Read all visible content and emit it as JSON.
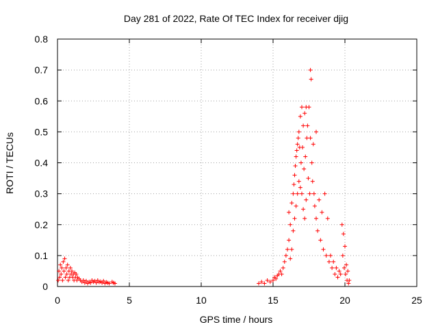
{
  "chart_data": {
    "type": "scatter",
    "title": "Day 281 of 2022, Rate Of TEC Index for receiver djig",
    "xlabel": "GPS time / hours",
    "ylabel": "ROTI / TECUs",
    "xlim": [
      0,
      25
    ],
    "ylim": [
      0,
      0.8
    ],
    "x_ticks": [
      0,
      5,
      10,
      15,
      20,
      25
    ],
    "y_ticks": [
      0,
      0.1,
      0.2,
      0.3,
      0.4,
      0.5,
      0.6,
      0.7,
      0.8
    ],
    "grid": "dotted",
    "marker": "+",
    "colors": {
      "points": "#ff0000",
      "grid": "#a0a0a0",
      "axes": "#000000"
    },
    "series": [
      {
        "points": [
          [
            0.05,
            0.02
          ],
          [
            0.1,
            0.05
          ],
          [
            0.15,
            0.03
          ],
          [
            0.2,
            0.07
          ],
          [
            0.25,
            0.04
          ],
          [
            0.3,
            0.06
          ],
          [
            0.35,
            0.02
          ],
          [
            0.4,
            0.08
          ],
          [
            0.45,
            0.05
          ],
          [
            0.5,
            0.09
          ],
          [
            0.55,
            0.03
          ],
          [
            0.6,
            0.06
          ],
          [
            0.65,
            0.04
          ],
          [
            0.7,
            0.07
          ],
          [
            0.75,
            0.02
          ],
          [
            0.8,
            0.05
          ],
          [
            0.85,
            0.03
          ],
          [
            0.9,
            0.06
          ],
          [
            0.95,
            0.04
          ],
          [
            1.0,
            0.05
          ],
          [
            1.05,
            0.03
          ],
          [
            1.1,
            0.04
          ],
          [
            1.15,
            0.02
          ],
          [
            1.2,
            0.045
          ],
          [
            1.25,
            0.03
          ],
          [
            1.3,
            0.04
          ],
          [
            1.35,
            0.02
          ],
          [
            1.4,
            0.03
          ],
          [
            1.5,
            0.025
          ],
          [
            1.6,
            0.02
          ],
          [
            1.7,
            0.015
          ],
          [
            1.8,
            0.02
          ],
          [
            1.9,
            0.012
          ],
          [
            2.0,
            0.018
          ],
          [
            2.1,
            0.01
          ],
          [
            2.2,
            0.015
          ],
          [
            2.3,
            0.012
          ],
          [
            2.4,
            0.02
          ],
          [
            2.5,
            0.015
          ],
          [
            2.6,
            0.018
          ],
          [
            2.7,
            0.012
          ],
          [
            2.8,
            0.02
          ],
          [
            2.9,
            0.014
          ],
          [
            3.0,
            0.016
          ],
          [
            3.1,
            0.012
          ],
          [
            3.2,
            0.018
          ],
          [
            3.3,
            0.01
          ],
          [
            3.4,
            0.014
          ],
          [
            3.5,
            0.012
          ],
          [
            3.6,
            0.01
          ],
          [
            3.8,
            0.015
          ],
          [
            3.9,
            0.012
          ],
          [
            4.0,
            0.01
          ],
          [
            14.0,
            0.01
          ],
          [
            14.2,
            0.015
          ],
          [
            14.4,
            0.01
          ],
          [
            14.6,
            0.02
          ],
          [
            14.8,
            0.015
          ],
          [
            15.0,
            0.02
          ],
          [
            15.1,
            0.03
          ],
          [
            15.2,
            0.025
          ],
          [
            15.3,
            0.035
          ],
          [
            15.4,
            0.04
          ],
          [
            15.5,
            0.05
          ],
          [
            15.6,
            0.04
          ],
          [
            15.7,
            0.06
          ],
          [
            15.8,
            0.08
          ],
          [
            15.9,
            0.1
          ],
          [
            16.0,
            0.12
          ],
          [
            16.1,
            0.15
          ],
          [
            16.1,
            0.24
          ],
          [
            16.2,
            0.2
          ],
          [
            16.2,
            0.09
          ],
          [
            16.3,
            0.27
          ],
          [
            16.3,
            0.12
          ],
          [
            16.4,
            0.3
          ],
          [
            16.4,
            0.18
          ],
          [
            16.45,
            0.33
          ],
          [
            16.5,
            0.36
          ],
          [
            16.5,
            0.22
          ],
          [
            16.55,
            0.39
          ],
          [
            16.6,
            0.42
          ],
          [
            16.6,
            0.26
          ],
          [
            16.65,
            0.44
          ],
          [
            16.7,
            0.46
          ],
          [
            16.7,
            0.3
          ],
          [
            16.75,
            0.48
          ],
          [
            16.8,
            0.5
          ],
          [
            16.8,
            0.34
          ],
          [
            16.85,
            0.45
          ],
          [
            16.9,
            0.55
          ],
          [
            16.9,
            0.32
          ],
          [
            16.95,
            0.4
          ],
          [
            17.0,
            0.58
          ],
          [
            17.0,
            0.3
          ],
          [
            17.05,
            0.45
          ],
          [
            17.1,
            0.52
          ],
          [
            17.1,
            0.25
          ],
          [
            17.15,
            0.38
          ],
          [
            17.2,
            0.56
          ],
          [
            17.2,
            0.22
          ],
          [
            17.25,
            0.42
          ],
          [
            17.3,
            0.58
          ],
          [
            17.3,
            0.28
          ],
          [
            17.35,
            0.48
          ],
          [
            17.4,
            0.52
          ],
          [
            17.45,
            0.35
          ],
          [
            17.5,
            0.58
          ],
          [
            17.55,
            0.3
          ],
          [
            17.6,
            0.7
          ],
          [
            17.6,
            0.48
          ],
          [
            17.65,
            0.67
          ],
          [
            17.7,
            0.4
          ],
          [
            17.75,
            0.34
          ],
          [
            17.8,
            0.46
          ],
          [
            17.85,
            0.3
          ],
          [
            17.9,
            0.26
          ],
          [
            18.0,
            0.5
          ],
          [
            18.0,
            0.22
          ],
          [
            18.1,
            0.18
          ],
          [
            18.2,
            0.28
          ],
          [
            18.3,
            0.15
          ],
          [
            18.4,
            0.24
          ],
          [
            18.5,
            0.12
          ],
          [
            18.6,
            0.3
          ],
          [
            18.7,
            0.1
          ],
          [
            18.8,
            0.22
          ],
          [
            18.9,
            0.08
          ],
          [
            19.0,
            0.1
          ],
          [
            19.1,
            0.06
          ],
          [
            19.2,
            0.08
          ],
          [
            19.3,
            0.04
          ],
          [
            19.4,
            0.06
          ],
          [
            19.5,
            0.03
          ],
          [
            19.6,
            0.05
          ],
          [
            19.7,
            0.04
          ],
          [
            19.8,
            0.2
          ],
          [
            19.85,
            0.1
          ],
          [
            19.9,
            0.17
          ],
          [
            19.95,
            0.06
          ],
          [
            20.0,
            0.13
          ],
          [
            20.05,
            0.04
          ],
          [
            20.1,
            0.07
          ],
          [
            20.15,
            0.02
          ],
          [
            20.2,
            0.05
          ],
          [
            20.25,
            0.01
          ],
          [
            20.3,
            0.02
          ]
        ]
      }
    ]
  }
}
